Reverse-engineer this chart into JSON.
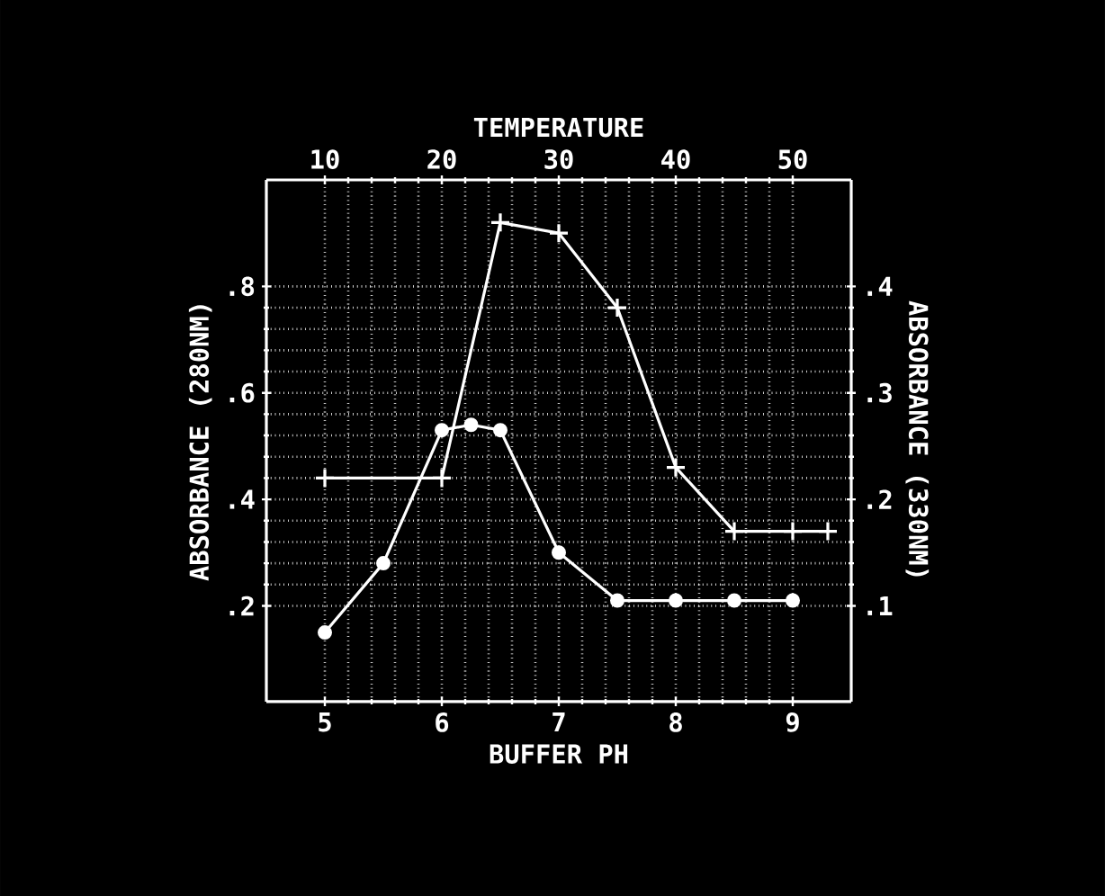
{
  "chart_data": {
    "type": "line",
    "xlabel": "BUFFER PH",
    "x2label": "TEMPERATURE",
    "ylabel": "ABSORBANCE (280NM)",
    "y2label": "ABSORBANCE (330NM)",
    "xlim": [
      4.5,
      9.5
    ],
    "xticks": [
      5,
      6,
      7,
      8,
      9
    ],
    "x2lim": [
      5,
      55
    ],
    "x2ticks": [
      10,
      20,
      30,
      40,
      50
    ],
    "ylim": [
      0.02,
      1.0
    ],
    "yticks": [
      {
        "value": 0.2,
        "label": ".2"
      },
      {
        "value": 0.4,
        "label": ".4"
      },
      {
        "value": 0.6,
        "label": ".6"
      },
      {
        "value": 0.8,
        "label": ".8"
      }
    ],
    "y2lim": [
      0.01,
      0.5
    ],
    "y2ticks": [
      {
        "value": 0.1,
        "label": ".1"
      },
      {
        "value": 0.2,
        "label": ".2"
      },
      {
        "value": 0.3,
        "label": ".3"
      },
      {
        "value": 0.4,
        "label": ".4"
      }
    ],
    "grid": true,
    "line_style": "solid",
    "series": [
      {
        "color": "#ffffff",
        "marker": "circle",
        "x": [
          5.0,
          5.5,
          6.0,
          6.25,
          6.5,
          7.0,
          7.5,
          8.0,
          8.5,
          9.0
        ],
        "values": [
          0.15,
          0.28,
          0.53,
          0.54,
          0.53,
          0.3,
          0.21,
          0.21,
          0.21,
          0.21
        ]
      },
      {
        "color": "#ffffff",
        "marker": "cross",
        "axis": "y2",
        "x": [
          5.0,
          6.0,
          6.5,
          7.0,
          7.5,
          8.0,
          8.5,
          9.0,
          9.3
        ],
        "values": [
          0.22,
          0.22,
          0.46,
          0.45,
          0.38,
          0.23,
          0.17,
          0.17,
          0.17
        ]
      }
    ]
  }
}
